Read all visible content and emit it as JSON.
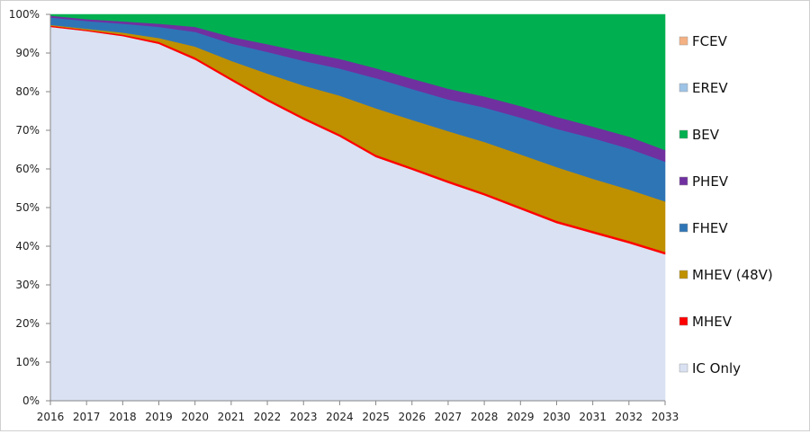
{
  "chart_data": {
    "type": "area",
    "stacked": true,
    "normalized_percent": true,
    "x": [
      2016,
      2017,
      2018,
      2019,
      2020,
      2021,
      2022,
      2023,
      2024,
      2025,
      2026,
      2027,
      2028,
      2029,
      2030,
      2031,
      2032,
      2033
    ],
    "ylim": [
      0,
      100
    ],
    "yticks": [
      "0%",
      "10%",
      "20%",
      "30%",
      "40%",
      "50%",
      "60%",
      "70%",
      "80%",
      "90%",
      "100%"
    ],
    "grid": false,
    "legend_position": "right",
    "series": [
      {
        "name": "IC Only",
        "color": "#d9e1f2",
        "values": [
          96.8,
          95.7,
          94.4,
          92.4,
          88.3,
          82.9,
          77.6,
          72.8,
          68.4,
          63.1,
          59.8,
          56.4,
          53.2,
          49.6,
          46.0,
          43.4,
          40.8,
          37.9
        ]
      },
      {
        "name": "MHEV",
        "color": "#ff0000",
        "values": [
          0.3,
          0.3,
          0.4,
          0.5,
          0.6,
          0.6,
          0.6,
          0.6,
          0.6,
          0.6,
          0.6,
          0.6,
          0.6,
          0.6,
          0.6,
          0.6,
          0.6,
          0.6
        ]
      },
      {
        "name": "MHEV (48V)",
        "color": "#bf9000",
        "values": [
          0.2,
          0.3,
          0.5,
          1.0,
          2.8,
          4.5,
          6.5,
          8.2,
          10.0,
          12.0,
          12.3,
          12.8,
          13.2,
          13.6,
          13.9,
          13.5,
          13.3,
          13.1
        ]
      },
      {
        "name": "FHEV",
        "color": "#2e75b6",
        "values": [
          1.9,
          2.0,
          2.3,
          2.9,
          3.8,
          4.5,
          5.6,
          6.4,
          7.0,
          7.8,
          8.0,
          8.2,
          8.9,
          9.5,
          9.9,
          10.5,
          10.6,
          10.3
        ]
      },
      {
        "name": "PHEV",
        "color": "#7030a0",
        "values": [
          0.5,
          0.5,
          0.6,
          0.8,
          1.3,
          1.7,
          2.0,
          2.3,
          2.5,
          2.6,
          2.7,
          2.8,
          2.9,
          3.0,
          3.1,
          3.0,
          3.1,
          3.0
        ]
      },
      {
        "name": "BEV",
        "color": "#00b050",
        "values": [
          0.3,
          1.2,
          1.8,
          2.4,
          3.2,
          5.8,
          7.7,
          9.7,
          11.5,
          13.9,
          16.6,
          19.2,
          21.2,
          23.7,
          26.5,
          29.0,
          31.6,
          35.1
        ]
      },
      {
        "name": "EREV",
        "color": "#9dc3e6",
        "values": [
          0,
          0,
          0,
          0,
          0,
          0,
          0,
          0,
          0,
          0,
          0,
          0,
          0,
          0,
          0,
          0,
          0,
          0
        ]
      },
      {
        "name": "FCEV",
        "color": "#f4b183",
        "values": [
          0,
          0,
          0,
          0,
          0,
          0,
          0,
          0,
          0,
          0,
          0,
          0,
          0,
          0,
          0,
          0,
          0,
          0
        ]
      }
    ],
    "legend_order": [
      "FCEV",
      "EREV",
      "BEV",
      "PHEV",
      "FHEV",
      "MHEV (48V)",
      "MHEV",
      "IC Only"
    ]
  }
}
